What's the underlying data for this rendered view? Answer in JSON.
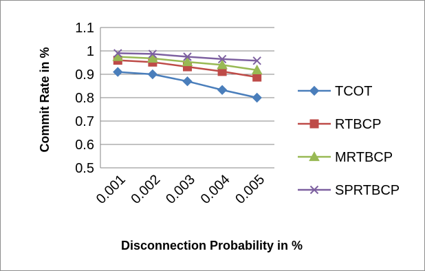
{
  "chart_data": {
    "type": "line",
    "title": "",
    "xlabel": "Disconnection Probability in %",
    "ylabel": "Commit Rate in %",
    "categories": [
      "0.001",
      "0.002",
      "0.003",
      "0.004",
      "0.005"
    ],
    "ylim": [
      0.5,
      1.1
    ],
    "yticks": [
      "0.5",
      "0.6",
      "0.7",
      "0.8",
      "0.9",
      "1",
      "1.1"
    ],
    "grid": "horizontal",
    "legend_position": "right",
    "series": [
      {
        "name": "TCOT",
        "color": "#4a7ebb",
        "marker": "diamond",
        "values": [
          0.91,
          0.9,
          0.87,
          0.833,
          0.8
        ]
      },
      {
        "name": "RTBCP",
        "color": "#be4b48",
        "marker": "square",
        "values": [
          0.96,
          0.952,
          0.932,
          0.912,
          0.888
        ]
      },
      {
        "name": "MRTBCP",
        "color": "#98b954",
        "marker": "triangle",
        "values": [
          0.975,
          0.968,
          0.953,
          0.94,
          0.918
        ]
      },
      {
        "name": "SPRTBCP",
        "color": "#7d60a0",
        "marker": "x",
        "values": [
          0.99,
          0.987,
          0.975,
          0.965,
          0.958
        ]
      }
    ]
  }
}
